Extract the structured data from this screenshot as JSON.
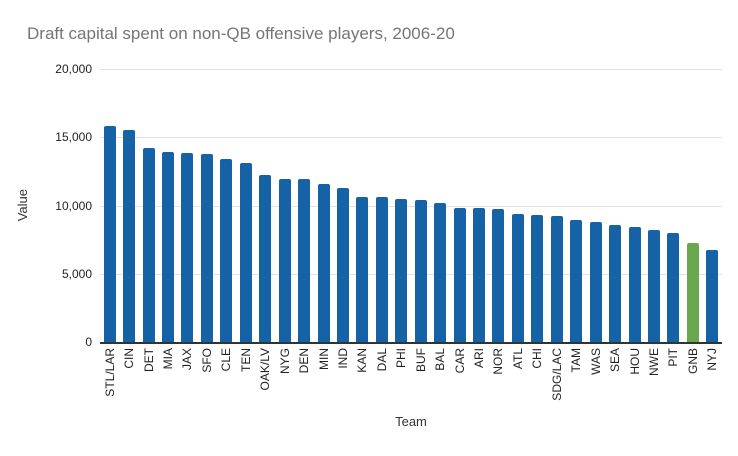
{
  "chart_data": {
    "type": "bar",
    "title": "Draft capital spent on non-QB offensive players, 2006-20",
    "xlabel": "Team",
    "ylabel": "Value",
    "ylim": [
      0,
      20000
    ],
    "grid": true,
    "legend": "none",
    "bar_color": "#1562a7",
    "highlight_color": "#6aa84f",
    "highlighted_team": "GNB",
    "yticks": [
      {
        "value": 0,
        "label": "0"
      },
      {
        "value": 5000,
        "label": "5,000"
      },
      {
        "value": 10000,
        "label": "10,000"
      },
      {
        "value": 15000,
        "label": "15,000"
      },
      {
        "value": 20000,
        "label": "20,000"
      }
    ],
    "categories": [
      "STL/LAR",
      "CIN",
      "DET",
      "MIA",
      "JAX",
      "SFO",
      "CLE",
      "TEN",
      "OAK/LV",
      "NYG",
      "DEN",
      "MIN",
      "IND",
      "KAN",
      "DAL",
      "PHI",
      "BUF",
      "BAL",
      "CAR",
      "ARI",
      "NOR",
      "ATL",
      "CHI",
      "SDG/LAC",
      "TAM",
      "WAS",
      "SEA",
      "HOU",
      "NWE",
      "PIT",
      "GNB",
      "NYJ"
    ],
    "values": [
      15800,
      15550,
      14250,
      13900,
      13850,
      13800,
      13400,
      13100,
      12250,
      11950,
      11950,
      11600,
      11300,
      10650,
      10600,
      10500,
      10400,
      10200,
      9850,
      9850,
      9750,
      9350,
      9300,
      9200,
      8950,
      8800,
      8550,
      8450,
      8200,
      7950,
      7270,
      6730
    ]
  }
}
